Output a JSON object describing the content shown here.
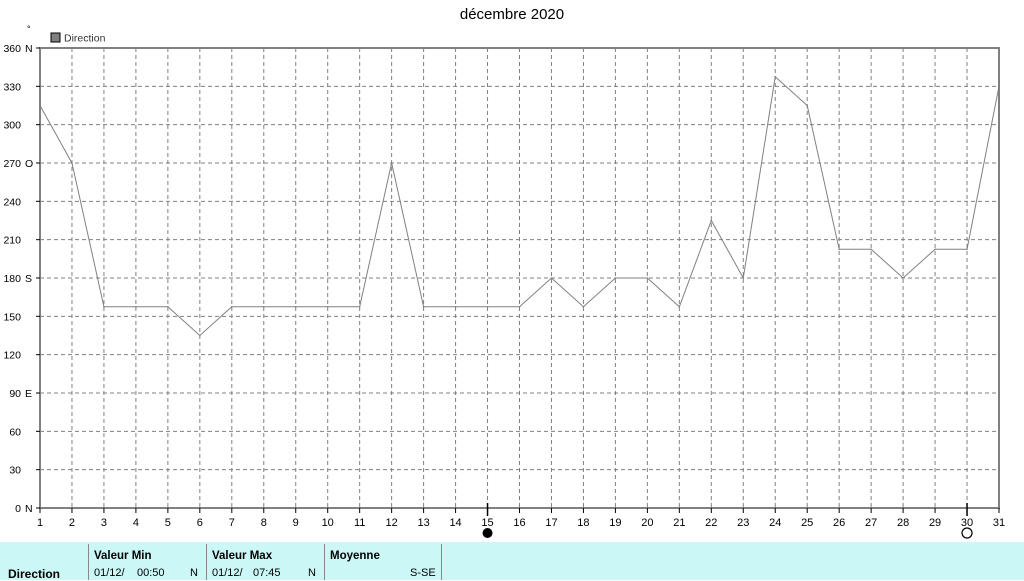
{
  "chart_data": {
    "type": "line",
    "title": "décembre 2020",
    "ylabel": "°",
    "xlabel": "",
    "ylim": [
      0,
      360
    ],
    "xlim": [
      1,
      31
    ],
    "grid": true,
    "legend_position": "top-left",
    "x": [
      1,
      2,
      3,
      4,
      5,
      6,
      7,
      8,
      9,
      10,
      11,
      12,
      13,
      14,
      15,
      16,
      17,
      18,
      19,
      20,
      21,
      22,
      23,
      24,
      25,
      26,
      27,
      28,
      29,
      30,
      31
    ],
    "y_ticks": [
      {
        "value": 0,
        "label": "0",
        "dir": "N"
      },
      {
        "value": 30,
        "label": "30",
        "dir": ""
      },
      {
        "value": 60,
        "label": "60",
        "dir": ""
      },
      {
        "value": 90,
        "label": "90",
        "dir": "E"
      },
      {
        "value": 120,
        "label": "120",
        "dir": ""
      },
      {
        "value": 150,
        "label": "150",
        "dir": ""
      },
      {
        "value": 180,
        "label": "180",
        "dir": "S"
      },
      {
        "value": 210,
        "label": "210",
        "dir": ""
      },
      {
        "value": 240,
        "label": "240",
        "dir": ""
      },
      {
        "value": 270,
        "label": "270",
        "dir": "O"
      },
      {
        "value": 300,
        "label": "300",
        "dir": ""
      },
      {
        "value": 330,
        "label": "330",
        "dir": ""
      },
      {
        "value": 360,
        "label": "360",
        "dir": "N"
      }
    ],
    "x_tick_labels": [
      "1",
      "2",
      "3",
      "4",
      "5",
      "6",
      "7",
      "8",
      "9",
      "10",
      "11",
      "12",
      "13",
      "14",
      "15",
      "16",
      "17",
      "18",
      "19",
      "20",
      "21",
      "22",
      "23",
      "24",
      "25",
      "26",
      "27",
      "28",
      "29",
      "30",
      "31"
    ],
    "series": [
      {
        "name": "Direction",
        "color": "#808080",
        "values": [
          315,
          270,
          157.5,
          157.5,
          157.5,
          135,
          157.5,
          157.5,
          157.5,
          157.5,
          157.5,
          270,
          157.5,
          157.5,
          157.5,
          157.5,
          180,
          157.5,
          180,
          180,
          157.5,
          225,
          180,
          337.5,
          315,
          202.5,
          202.5,
          180,
          202.5,
          202.5,
          330
        ]
      }
    ],
    "moon_phases": [
      {
        "day": 15,
        "phase": "new-moon"
      },
      {
        "day": 30,
        "phase": "full-moon"
      }
    ]
  },
  "stats": {
    "row_label": "Direction",
    "min_header": "Valeur Min",
    "min_date": "01/12/",
    "min_time": "00:50",
    "min_value": "N",
    "max_header": "Valeur Max",
    "max_date": "01/12/",
    "max_time": "07:45",
    "max_value": "N",
    "avg_header": "Moyenne",
    "avg_value": "S-SE"
  },
  "colors": {
    "plot_border": "#808080",
    "grid": "#808080",
    "line": "#808080",
    "stats_bg": "#ccf7f7"
  }
}
